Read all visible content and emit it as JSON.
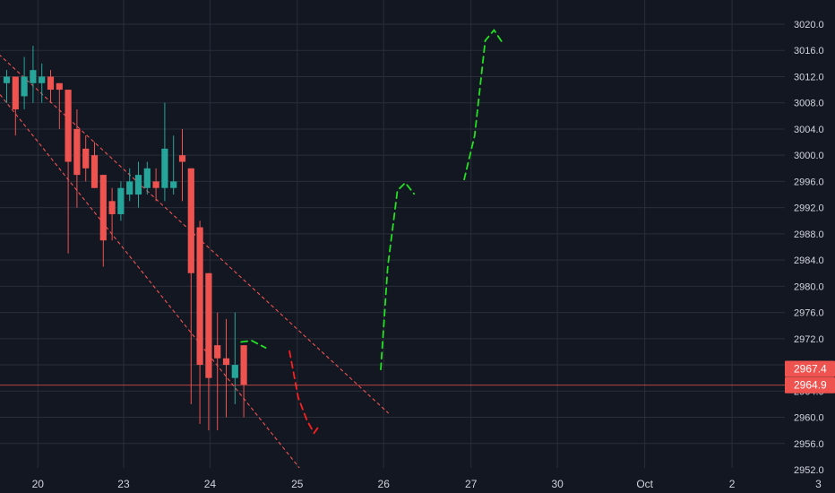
{
  "colors": {
    "background": "#131722",
    "grid": "#2a2e39",
    "axis_text": "#d1d4dc",
    "candle_up": "#26a69a",
    "candle_down": "#ef5350",
    "channel_line": "#ef5350",
    "projection_up": "#22e022",
    "projection_down": "#ff1f1f",
    "price_label_bg": "#ef5350",
    "price_label_text": "#ffffff"
  },
  "chart_data": {
    "type": "candlestick",
    "title": "",
    "xlabel": "",
    "ylabel": "",
    "ylim": [
      2952,
      3022
    ],
    "yticks": [
      "2952.0",
      "2956.0",
      "2960.0",
      "2964.0",
      "2968.0",
      "2972.0",
      "2976.0",
      "2980.0",
      "2984.0",
      "2988.0",
      "2992.0",
      "2996.0",
      "3000.0",
      "3004.0",
      "3008.0",
      "3012.0",
      "3016.0",
      "3020.0"
    ],
    "x_ticks": [
      {
        "label": "20",
        "x": 1.0
      },
      {
        "label": "23",
        "x": 10.76
      },
      {
        "label": "24",
        "x": 20.6
      },
      {
        "label": "25",
        "x": 30.54
      },
      {
        "label": "26",
        "x": 40.38
      },
      {
        "label": "27",
        "x": 50.33
      },
      {
        "label": "30",
        "x": 60.17
      },
      {
        "label": "Oct",
        "x": 70.12
      },
      {
        "label": "2",
        "x": 80.06
      },
      {
        "label": "3",
        "x": 89.9
      }
    ],
    "grid": true,
    "candles": [
      {
        "x": 0,
        "open": 3011,
        "high": 3013,
        "low": 3008,
        "close": 3012
      },
      {
        "x": 1,
        "open": 3012,
        "high": 3012,
        "low": 3003,
        "close": 3007
      },
      {
        "x": 2,
        "open": 3009,
        "high": 3015,
        "low": 3007,
        "close": 3012
      },
      {
        "x": 3,
        "open": 3011,
        "high": 3016.7,
        "low": 3008,
        "close": 3013
      },
      {
        "x": 4,
        "open": 3011,
        "high": 3014,
        "low": 3008,
        "close": 3012
      },
      {
        "x": 5,
        "open": 3012,
        "high": 3013,
        "low": 3008,
        "close": 3010
      },
      {
        "x": 6,
        "open": 3011,
        "high": 3011,
        "low": 3004,
        "close": 3010
      },
      {
        "x": 7,
        "open": 3010,
        "high": 3010,
        "low": 2985,
        "close": 2999
      },
      {
        "x": 8,
        "open": 3004,
        "high": 3007,
        "low": 2992,
        "close": 2997
      },
      {
        "x": 9,
        "open": 3001,
        "high": 3003,
        "low": 2996,
        "close": 2998
      },
      {
        "x": 10,
        "open": 3000,
        "high": 3002,
        "low": 2995,
        "close": 2995
      },
      {
        "x": 11,
        "open": 2997,
        "high": 2997,
        "low": 2983,
        "close": 2987
      },
      {
        "x": 12,
        "open": 2993,
        "high": 2995,
        "low": 2987,
        "close": 2991
      },
      {
        "x": 13,
        "open": 2991,
        "high": 2996,
        "low": 2990,
        "close": 2995
      },
      {
        "x": 14,
        "open": 2994,
        "high": 2998,
        "low": 2993,
        "close": 2996
      },
      {
        "x": 15,
        "open": 2994,
        "high": 2999,
        "low": 2992,
        "close": 2997
      },
      {
        "x": 16,
        "open": 2995,
        "high": 2999,
        "low": 2994,
        "close": 2998
      },
      {
        "x": 17,
        "open": 2996,
        "high": 2998,
        "low": 2993,
        "close": 2995
      },
      {
        "x": 18,
        "open": 2995,
        "high": 3008,
        "low": 2993,
        "close": 3001
      },
      {
        "x": 19,
        "open": 2995,
        "high": 3003,
        "low": 2994,
        "close": 2996
      },
      {
        "x": 20,
        "open": 3000,
        "high": 3004,
        "low": 2993,
        "close": 2999
      },
      {
        "x": 21,
        "open": 2998,
        "high": 2998,
        "low": 2962,
        "close": 2982
      },
      {
        "x": 22,
        "open": 2989,
        "high": 2990,
        "low": 2959,
        "close": 2968
      },
      {
        "x": 23,
        "open": 2982,
        "high": 2982,
        "low": 2958,
        "close": 2966
      },
      {
        "x": 24,
        "open": 2971,
        "high": 2976,
        "low": 2958,
        "close": 2969
      },
      {
        "x": 25,
        "open": 2969,
        "high": 2975,
        "low": 2960,
        "close": 2968
      },
      {
        "x": 26,
        "open": 2966,
        "high": 2976,
        "low": 2962,
        "close": 2968
      },
      {
        "x": 27,
        "open": 2971,
        "high": 2971,
        "low": 2960,
        "close": 2965
      }
    ],
    "channel_lines": [
      {
        "x1": -3,
        "y1": 3018,
        "x2": 43.5,
        "y2": 2960.6
      },
      {
        "x1": -3,
        "y1": 3013,
        "x2": 33.5,
        "y2": 2952
      }
    ],
    "projection_up": [
      [
        26.7,
        2971.5
      ],
      [
        27.9,
        2971.7
      ],
      [
        29.5,
        2970.6
      ],
      [
        42.6,
        2967.3
      ],
      [
        43.4,
        2983
      ],
      [
        44.5,
        2994.6
      ],
      [
        45.4,
        2995.8
      ],
      [
        46.4,
        2994.1
      ],
      [
        52.1,
        2996.3
      ],
      [
        53.3,
        3003
      ],
      [
        54.5,
        3017.5
      ],
      [
        55.5,
        3019.1
      ],
      [
        56.5,
        3017.1
      ]
    ],
    "projection_down": [
      [
        32.2,
        2970.1
      ],
      [
        33.2,
        2963
      ],
      [
        34.2,
        2959.5
      ],
      [
        35,
        2957.6
      ],
      [
        35.7,
        2958.9
      ]
    ],
    "price_labels": [
      {
        "value": 2967.4,
        "text": "2967.4"
      },
      {
        "value": 2964.9,
        "text": "2964.9"
      }
    ]
  }
}
